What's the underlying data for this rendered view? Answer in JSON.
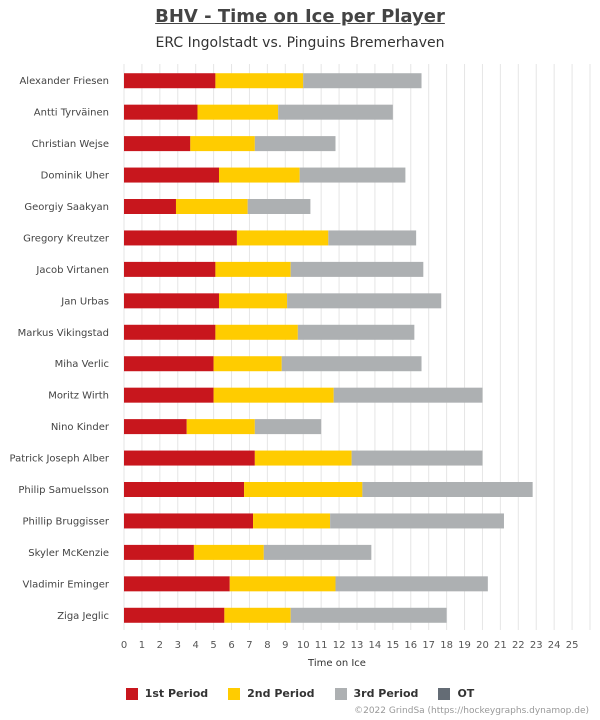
{
  "chart_data": {
    "type": "bar",
    "orientation": "horizontal",
    "stacked": true,
    "title": "BHV - Time on Ice per Player",
    "subtitle": "ERC Ingolstadt vs. Pinguins Bremerhaven",
    "xlabel": "Time on Ice",
    "xlim": [
      0,
      26
    ],
    "xticks": [
      0,
      1,
      2,
      3,
      4,
      5,
      6,
      7,
      8,
      9,
      10,
      11,
      12,
      13,
      14,
      15,
      16,
      17,
      18,
      19,
      20,
      21,
      22,
      23,
      24,
      25
    ],
    "grid": true,
    "legend_position": "bottom",
    "categories": [
      "Alexander Friesen",
      "Antti Tyrväinen",
      "Christian Wejse",
      "Dominik Uher",
      "Georgiy Saakyan",
      "Gregory Kreutzer",
      "Jacob Virtanen",
      "Jan Urbas",
      "Markus Vikingstad",
      "Miha Verlic",
      "Moritz Wirth",
      "Nino Kinder",
      "Patrick Joseph Alber",
      "Philip Samuelsson",
      "Phillip Bruggisser",
      "Skyler McKenzie",
      "Vladimir Eminger",
      "Ziga Jeglic"
    ],
    "series": [
      {
        "name": "1st Period",
        "color": "#c8161d",
        "values": [
          5.1,
          4.1,
          3.7,
          5.3,
          2.9,
          6.3,
          5.1,
          5.3,
          5.1,
          5.0,
          5.0,
          3.5,
          7.3,
          6.7,
          7.2,
          3.9,
          5.9,
          5.6
        ]
      },
      {
        "name": "2nd Period",
        "color": "#ffcc00",
        "values": [
          4.9,
          4.5,
          3.6,
          4.5,
          4.0,
          5.1,
          4.2,
          3.8,
          4.6,
          3.8,
          6.7,
          3.8,
          5.4,
          6.6,
          4.3,
          3.9,
          5.9,
          3.7
        ]
      },
      {
        "name": "3rd Period",
        "color": "#adb0b2",
        "values": [
          6.6,
          6.4,
          4.5,
          5.9,
          3.5,
          4.9,
          7.4,
          8.6,
          6.5,
          7.8,
          8.3,
          3.7,
          7.3,
          9.5,
          9.7,
          6.0,
          8.5,
          8.7
        ]
      },
      {
        "name": "OT",
        "color": "#646c75",
        "values": [
          0,
          0,
          0,
          0,
          0,
          0,
          0,
          0,
          0,
          0,
          0,
          0,
          0,
          0,
          0,
          0,
          0,
          0
        ]
      }
    ]
  },
  "credit": "©2022 GrindSa (https://hockeygraphs.dynamop.de)"
}
